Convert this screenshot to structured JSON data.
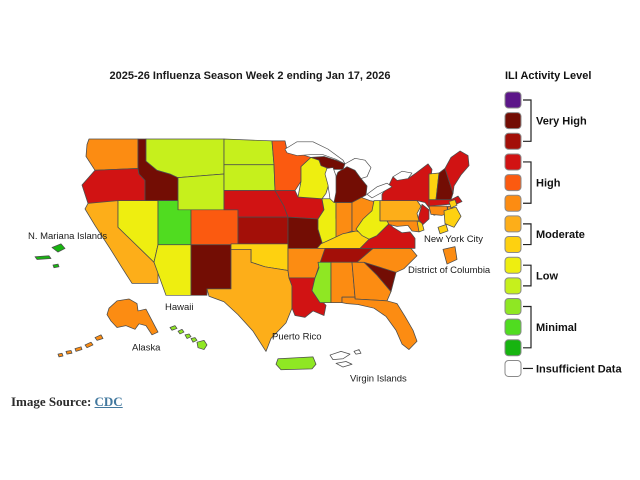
{
  "title": "2025-26 Influenza Season Week 2 ending Jan 17, 2026",
  "legend": {
    "title": "ILI Activity Level",
    "levels": [
      {
        "color": "#5c1689",
        "group": "Very High"
      },
      {
        "color": "#730d04",
        "group": "Very High"
      },
      {
        "color": "#a30f08",
        "group": "Very High"
      },
      {
        "color": "#d11313",
        "group": "High"
      },
      {
        "color": "#fb5a10",
        "group": "High"
      },
      {
        "color": "#fc8c12",
        "group": "High"
      },
      {
        "color": "#fdae19",
        "group": "Moderate"
      },
      {
        "color": "#fed110",
        "group": "Moderate"
      },
      {
        "color": "#eeee10",
        "group": "Low"
      },
      {
        "color": "#c6f01c",
        "group": "Low"
      },
      {
        "color": "#8fe723",
        "group": "Minimal"
      },
      {
        "color": "#50dc20",
        "group": "Minimal"
      },
      {
        "color": "#17b410",
        "group": "Minimal"
      },
      {
        "color": "#ffffff",
        "group": "Insufficient Data"
      }
    ],
    "groups": [
      {
        "label": "Very High",
        "span": [
          0,
          2
        ]
      },
      {
        "label": "High",
        "span": [
          3,
          5
        ]
      },
      {
        "label": "Moderate",
        "span": [
          6,
          7
        ]
      },
      {
        "label": "Low",
        "span": [
          8,
          9
        ]
      },
      {
        "label": "Minimal",
        "span": [
          10,
          12
        ]
      },
      {
        "label": "Insufficient Data",
        "span": [
          13,
          13
        ]
      }
    ]
  },
  "map": {
    "states": [
      {
        "id": "WA",
        "name": "Washington",
        "level": 5
      },
      {
        "id": "OR",
        "name": "Oregon",
        "level": 3
      },
      {
        "id": "CA",
        "name": "California",
        "level": 6
      },
      {
        "id": "NV",
        "name": "Nevada",
        "level": 8
      },
      {
        "id": "ID",
        "name": "Idaho",
        "level": 1
      },
      {
        "id": "MT",
        "name": "Montana",
        "level": 9
      },
      {
        "id": "WY",
        "name": "Wyoming",
        "level": 9
      },
      {
        "id": "UT",
        "name": "Utah",
        "level": 11
      },
      {
        "id": "CO",
        "name": "Colorado",
        "level": 4
      },
      {
        "id": "AZ",
        "name": "Arizona",
        "level": 8
      },
      {
        "id": "NM",
        "name": "New Mexico",
        "level": 1
      },
      {
        "id": "ND",
        "name": "North Dakota",
        "level": 9
      },
      {
        "id": "SD",
        "name": "South Dakota",
        "level": 9
      },
      {
        "id": "NE",
        "name": "Nebraska",
        "level": 3
      },
      {
        "id": "KS",
        "name": "Kansas",
        "level": 2
      },
      {
        "id": "OK",
        "name": "Oklahoma",
        "level": 7
      },
      {
        "id": "TX",
        "name": "Texas",
        "level": 6
      },
      {
        "id": "MN",
        "name": "Minnesota",
        "level": 4
      },
      {
        "id": "IA",
        "name": "Iowa",
        "level": 3
      },
      {
        "id": "MO",
        "name": "Missouri",
        "level": 1
      },
      {
        "id": "WI",
        "name": "Wisconsin",
        "level": 8
      },
      {
        "id": "IL",
        "name": "Illinois",
        "level": 8
      },
      {
        "id": "IN",
        "name": "Indiana",
        "level": 5
      },
      {
        "id": "OH",
        "name": "Ohio",
        "level": 5
      },
      {
        "id": "MI",
        "name": "Michigan",
        "level": 1
      },
      {
        "id": "KY",
        "name": "Kentucky",
        "level": 7
      },
      {
        "id": "TN",
        "name": "Tennessee",
        "level": 2
      },
      {
        "id": "AR",
        "name": "Arkansas",
        "level": 5
      },
      {
        "id": "LA",
        "name": "Louisiana",
        "level": 3
      },
      {
        "id": "MS",
        "name": "Mississippi",
        "level": 10
      },
      {
        "id": "AL",
        "name": "Alabama",
        "level": 5
      },
      {
        "id": "GA",
        "name": "Georgia",
        "level": 5
      },
      {
        "id": "FL",
        "name": "Florida",
        "level": 5
      },
      {
        "id": "SC",
        "name": "South Carolina",
        "level": 1
      },
      {
        "id": "NC",
        "name": "North Carolina",
        "level": 5
      },
      {
        "id": "VA",
        "name": "Virginia",
        "level": 3
      },
      {
        "id": "WV",
        "name": "West Virginia",
        "level": 8
      },
      {
        "id": "MD",
        "name": "Maryland",
        "level": 5
      },
      {
        "id": "DE",
        "name": "Delaware",
        "level": 7
      },
      {
        "id": "NJ",
        "name": "New Jersey",
        "level": 3
      },
      {
        "id": "PA",
        "name": "Pennsylvania",
        "level": 6
      },
      {
        "id": "NY",
        "name": "New York",
        "level": 3
      },
      {
        "id": "VT",
        "name": "Vermont",
        "level": 7
      },
      {
        "id": "NH",
        "name": "New Hampshire",
        "level": 1
      },
      {
        "id": "ME",
        "name": "Maine",
        "level": 3
      },
      {
        "id": "MA",
        "name": "Massachusetts",
        "level": 3
      },
      {
        "id": "RI",
        "name": "Rhode Island",
        "level": 5
      },
      {
        "id": "CT",
        "name": "Connecticut",
        "level": 5
      },
      {
        "id": "AK",
        "name": "Alaska",
        "level": 5
      },
      {
        "id": "HI",
        "name": "Hawaii",
        "level": 10
      },
      {
        "id": "PR",
        "name": "Puerto Rico",
        "level": 10
      },
      {
        "id": "VI",
        "name": "Virgin Islands",
        "level": 13
      },
      {
        "id": "MP",
        "name": "N. Mariana Islands",
        "level": 12
      },
      {
        "id": "NYC",
        "name": "New York City",
        "level": 7
      },
      {
        "id": "DC",
        "name": "District of Columbia",
        "level": 5
      }
    ],
    "labels": [
      {
        "id": "n-mariana-islands",
        "text": "N. Mariana Islands"
      },
      {
        "id": "new-york-city",
        "text": "New York City"
      },
      {
        "id": "district-of-columbia",
        "text": "District of Columbia"
      },
      {
        "id": "hawaii",
        "text": "Hawaii"
      },
      {
        "id": "alaska",
        "text": "Alaska"
      },
      {
        "id": "puerto-rico",
        "text": "Puerto Rico"
      },
      {
        "id": "virgin-islands",
        "text": "Virgin Islands"
      }
    ]
  },
  "source": {
    "prefix": "Image Source: ",
    "link_text": "CDC"
  }
}
